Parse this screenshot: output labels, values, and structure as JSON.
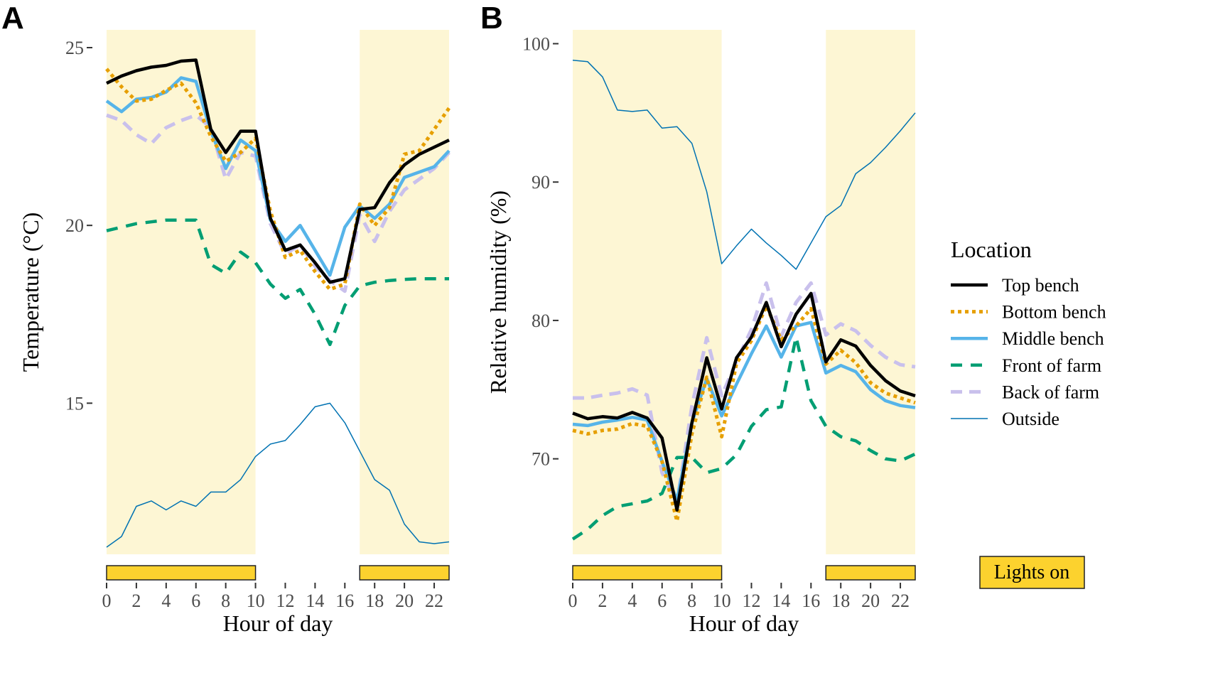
{
  "colors": {
    "shade": "#fdf6d4",
    "lights_bar": "#fcd22e",
    "top_bench": "#000000",
    "bottom_bench": "#e69f00",
    "middle_bench": "#56b4e9",
    "front_of_farm": "#009e73",
    "back_of_farm": "#c9c0ec",
    "outside": "#0072b2"
  },
  "legend": {
    "title": "Location",
    "lights_label": "Lights on"
  },
  "chart_data": [
    {
      "type": "line",
      "panel": "A",
      "xlabel": "Hour of day",
      "ylabel": "Temperature (°C)",
      "xlim": [
        0,
        23
      ],
      "ylim": [
        10.75,
        25.5
      ],
      "xticks": [
        0,
        2,
        4,
        6,
        8,
        10,
        12,
        14,
        16,
        18,
        20,
        22
      ],
      "yticks": [
        15,
        20,
        25
      ],
      "lights_on": [
        [
          0,
          10
        ],
        [
          17,
          23
        ]
      ],
      "x": [
        0,
        1,
        2,
        3,
        4,
        5,
        6,
        7,
        8,
        9,
        10,
        11,
        12,
        13,
        14,
        15,
        16,
        17,
        18,
        19,
        20,
        21,
        22,
        23
      ],
      "series": [
        {
          "name": "Top bench",
          "values": [
            24.0,
            24.2,
            24.35,
            24.45,
            24.5,
            24.62,
            24.65,
            22.7,
            22.05,
            22.65,
            22.65,
            20.2,
            19.3,
            19.45,
            18.95,
            18.4,
            18.5,
            20.45,
            20.5,
            21.2,
            21.7,
            22.0,
            22.2,
            22.4
          ]
        },
        {
          "name": "Bottom bench",
          "values": [
            24.4,
            23.9,
            23.5,
            23.55,
            23.8,
            24.0,
            23.45,
            22.5,
            21.8,
            22.05,
            22.45,
            20.4,
            19.1,
            19.3,
            18.7,
            18.2,
            18.35,
            20.6,
            20.0,
            20.5,
            22.0,
            22.1,
            22.7,
            23.3
          ]
        },
        {
          "name": "Middle bench",
          "values": [
            23.5,
            23.2,
            23.55,
            23.6,
            23.75,
            24.15,
            24.05,
            22.65,
            21.6,
            22.4,
            22.1,
            20.15,
            19.55,
            20.0,
            19.3,
            18.6,
            19.95,
            20.55,
            20.2,
            20.6,
            21.35,
            21.5,
            21.65,
            22.1
          ]
        },
        {
          "name": "Front of farm",
          "values": [
            19.85,
            19.95,
            20.05,
            20.1,
            20.15,
            20.15,
            20.15,
            18.9,
            18.65,
            19.25,
            18.95,
            18.35,
            17.95,
            18.2,
            17.5,
            16.65,
            17.75,
            18.3,
            18.4,
            18.45,
            18.48,
            18.5,
            18.5,
            18.5
          ]
        },
        {
          "name": "Back of farm",
          "values": [
            23.1,
            22.95,
            22.55,
            22.3,
            22.75,
            22.95,
            23.1,
            22.75,
            21.3,
            22.05,
            21.95,
            20.05,
            19.2,
            19.45,
            18.85,
            18.45,
            18.15,
            20.3,
            19.55,
            20.4,
            21.0,
            21.3,
            21.6,
            22.05
          ]
        },
        {
          "name": "Outside",
          "values": [
            10.95,
            11.25,
            12.1,
            12.25,
            12.0,
            12.25,
            12.1,
            12.5,
            12.5,
            12.85,
            13.5,
            13.85,
            13.95,
            14.4,
            14.9,
            15.0,
            14.45,
            13.65,
            12.85,
            12.55,
            11.6,
            11.1,
            11.05,
            11.1
          ]
        }
      ]
    },
    {
      "type": "line",
      "panel": "B",
      "xlabel": "Hour of day",
      "ylabel": "Relative humidity (%)",
      "xlim": [
        0,
        23
      ],
      "ylim": [
        63.1,
        101.0
      ],
      "xticks": [
        0,
        2,
        4,
        6,
        8,
        10,
        12,
        14,
        16,
        18,
        20,
        22
      ],
      "yticks": [
        70,
        80,
        90,
        100
      ],
      "lights_on": [
        [
          0,
          10
        ],
        [
          17,
          23
        ]
      ],
      "x": [
        0,
        1,
        2,
        3,
        4,
        5,
        6,
        7,
        8,
        9,
        10,
        11,
        12,
        13,
        14,
        15,
        16,
        17,
        18,
        19,
        20,
        21,
        22,
        23
      ],
      "series": [
        {
          "name": "Top bench",
          "values": [
            73.3,
            72.9,
            73.05,
            72.95,
            73.35,
            72.95,
            71.5,
            66.3,
            72.6,
            77.3,
            73.6,
            77.3,
            78.8,
            81.3,
            78.1,
            80.45,
            81.95,
            77.0,
            78.6,
            78.15,
            76.75,
            75.65,
            74.9,
            74.55
          ]
        },
        {
          "name": "Bottom bench",
          "values": [
            72.05,
            71.8,
            72.05,
            72.15,
            72.55,
            72.35,
            69.8,
            65.5,
            71.8,
            75.9,
            71.6,
            76.9,
            78.55,
            81.05,
            78.6,
            79.6,
            80.85,
            76.85,
            77.85,
            76.95,
            75.5,
            74.75,
            74.4,
            74.05
          ]
        },
        {
          "name": "Middle bench",
          "values": [
            72.5,
            72.4,
            72.65,
            72.8,
            73.0,
            72.8,
            69.8,
            67.0,
            72.6,
            75.8,
            73.1,
            75.4,
            77.6,
            79.6,
            77.35,
            79.6,
            79.85,
            76.2,
            76.75,
            76.3,
            75.0,
            74.2,
            73.85,
            73.7
          ]
        },
        {
          "name": "Front of farm",
          "values": [
            64.2,
            64.9,
            65.9,
            66.55,
            66.75,
            66.95,
            67.5,
            70.1,
            70.1,
            69.0,
            69.3,
            70.3,
            72.35,
            73.55,
            73.75,
            78.8,
            74.2,
            72.35,
            71.6,
            71.3,
            70.6,
            70.0,
            69.85,
            70.35
          ]
        },
        {
          "name": "Back of farm",
          "values": [
            74.4,
            74.4,
            74.6,
            74.75,
            75.05,
            74.6,
            69.0,
            66.8,
            73.8,
            78.75,
            74.55,
            77.05,
            79.35,
            82.7,
            78.85,
            81.3,
            82.7,
            78.95,
            79.75,
            79.25,
            78.2,
            77.35,
            76.8,
            76.65
          ]
        },
        {
          "name": "Outside",
          "values": [
            98.8,
            98.7,
            97.6,
            95.2,
            95.1,
            95.2,
            93.9,
            94.0,
            92.8,
            89.3,
            84.1,
            85.4,
            86.6,
            85.6,
            84.7,
            83.7,
            85.6,
            87.5,
            88.3,
            90.6,
            91.4,
            92.5,
            93.7,
            95.0
          ]
        }
      ]
    }
  ]
}
